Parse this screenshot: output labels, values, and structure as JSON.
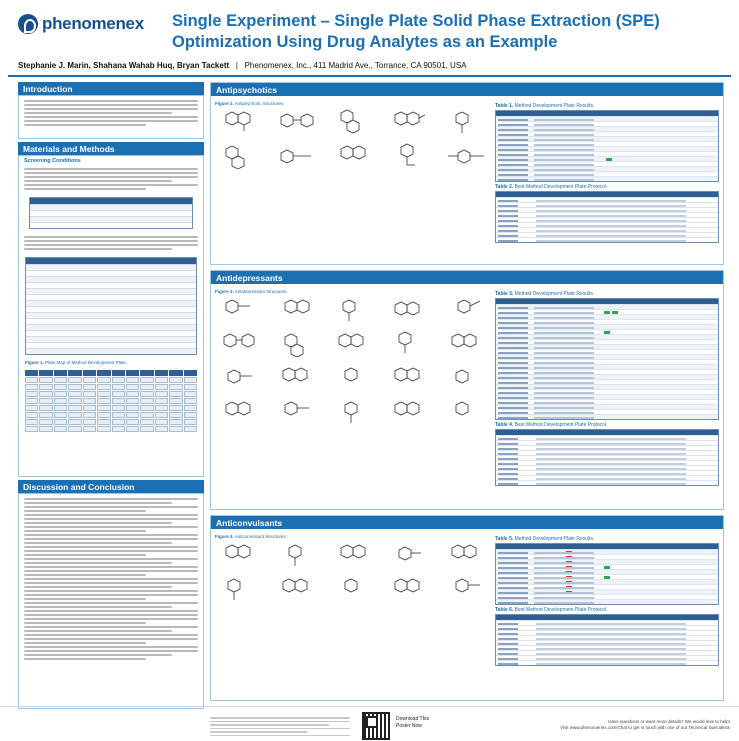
{
  "brand": {
    "name": "phenomenex"
  },
  "header": {
    "title_line1": "Single Experiment – Single Plate Solid Phase Extraction (SPE)",
    "title_line2": "Optimization Using Drug Analytes as an Example",
    "authors": "Stephanie J. Marin, Shahana Wahab Huq, Bryan Tackett",
    "separator": "|",
    "affiliation": "Phenomenex, Inc., 411 Madrid Ave., Torrance, CA 90501, USA"
  },
  "left": {
    "intro": {
      "heading": "Introduction"
    },
    "methods": {
      "heading": "Materials and Methods",
      "subheading": "Screening Conditions",
      "figure_caption_label": "Figure 1.",
      "figure_caption_text": "Plate Map of Method Development Plate."
    },
    "discussion": {
      "heading": "Discussion and Conclusion"
    }
  },
  "sections": [
    {
      "heading": "Antipsychotics",
      "figure_label": "Figure 2.",
      "figure_text": "Antipsychotic Structures.",
      "table_results_label": "Table 1.",
      "table_results_text": "Method Development Plate Results.",
      "table_protocol_label": "Table 2.",
      "table_protocol_text": "Best Method Development Plate Protocol."
    },
    {
      "heading": "Antidepressants",
      "figure_label": "Figure 3.",
      "figure_text": "Antidepressant Structures.",
      "table_results_label": "Table 3.",
      "table_results_text": "Method Development Plate Results.",
      "table_protocol_label": "Table 4.",
      "table_protocol_text": "Best Method Development Plate Protocol."
    },
    {
      "heading": "Anticonvulsants",
      "figure_label": "Figure 4.",
      "figure_text": "Anticonvulsant Structures.",
      "table_results_label": "Table 5.",
      "table_results_text": "Method Development Plate Results.",
      "table_protocol_label": "Table 6.",
      "table_protocol_text": "Best Method Development Plate Protocol."
    }
  ],
  "footer": {
    "download_line1": "Download This",
    "download_line2": "Poster Now",
    "contact_line1": "Have questions or want more details? We would love to help!",
    "contact_line2": "Visit www.phenomenex.com/Chat to get in touch with one of our Technical Specialists"
  },
  "colors": {
    "brand_blue": "#1b6fb3",
    "header_navy": "#2d5f95",
    "pass_green": "#2aa84a",
    "fail_red": "#d9322f"
  }
}
